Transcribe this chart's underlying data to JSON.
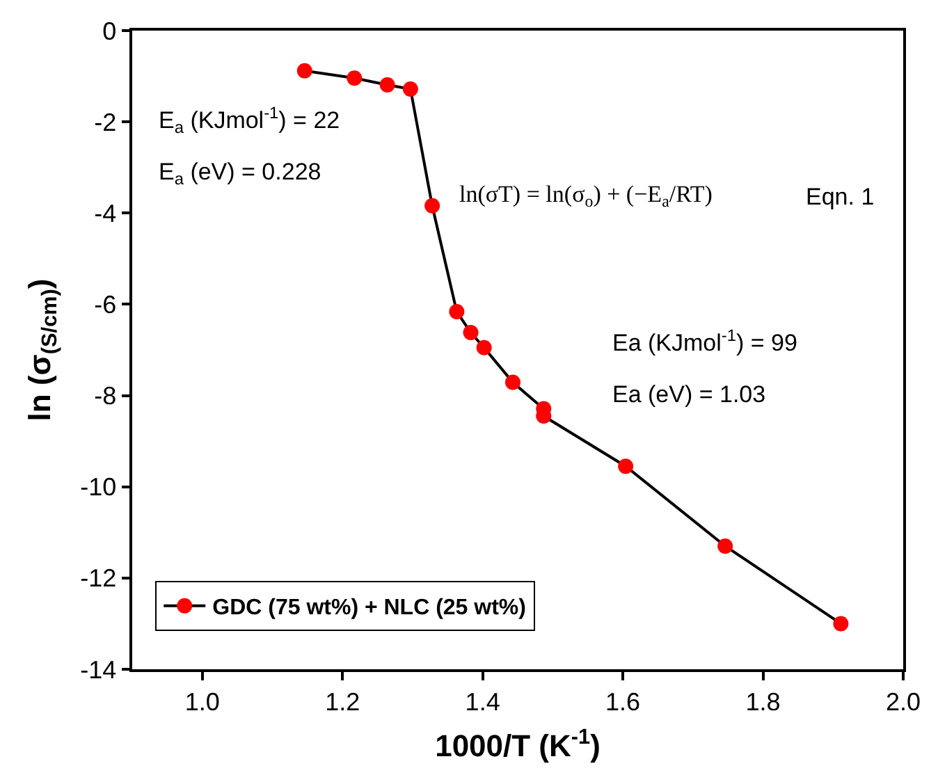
{
  "chart_data": {
    "type": "line",
    "xlabel": "1000/T (K$^{-1}$)",
    "ylabel": "ln (σ$_{(S/cm)}$)",
    "x": [
      1.146,
      1.217,
      1.264,
      1.297,
      1.328,
      1.363,
      1.383,
      1.402,
      1.443,
      1.487,
      1.487,
      1.604,
      1.746,
      1.911
    ],
    "series": [
      {
        "name": "GDC (75 wt%) + NLC (25 wt%)",
        "color": "#ff0000",
        "values": [
          -0.88,
          -1.04,
          -1.19,
          -1.28,
          -3.84,
          -6.16,
          -6.62,
          -6.95,
          -7.71,
          -8.29,
          -8.45,
          -9.55,
          -11.3,
          -13.0
        ]
      }
    ],
    "xlim": [
      0.9,
      2.0
    ],
    "xticks": [
      {
        "value": 1.0,
        "label": "1.0"
      },
      1.2,
      1.4,
      1.6,
      1.8,
      {
        "value": 2.0,
        "label": "2.0"
      }
    ],
    "ylim": [
      -14,
      0
    ],
    "yticks": [
      0,
      -2,
      -4,
      -6,
      -8,
      -10,
      -12,
      -14
    ],
    "legend": "bottom left",
    "marker": "circle",
    "line_style": "solid",
    "annotations": [
      "E$_{a}$ (KJmol$^{-1}$) = 22",
      "E$_{a}$ (eV) = 0.228",
      "ln(σT) = ln(σ$_{o}$) + (−E$_{a}$/RT)",
      "Eqn. 1",
      "Ea (KJmol$^{-1}$) = 99",
      "Ea (eV) = 1.03"
    ]
  }
}
